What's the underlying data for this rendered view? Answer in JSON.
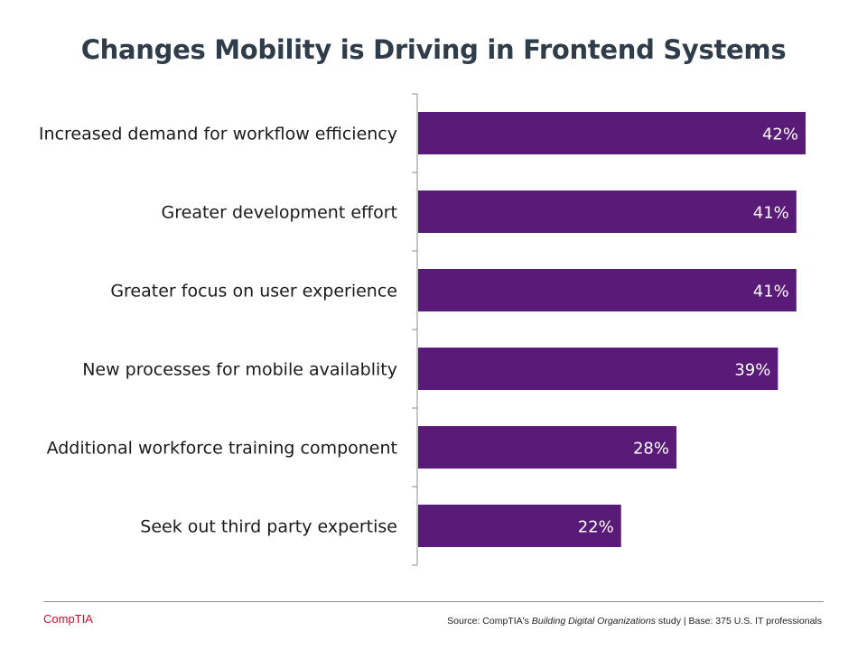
{
  "chart_data": {
    "type": "bar",
    "orientation": "horizontal",
    "title": "Changes Mobility is Driving in Frontend Systems",
    "categories": [
      "Increased demand for workflow efficiency",
      "Greater development effort",
      "Greater focus on user experience",
      "New processes for mobile availablity",
      "Additional workforce training component",
      "Seek out third party expertise"
    ],
    "values": [
      42,
      41,
      41,
      39,
      28,
      22
    ],
    "value_labels": [
      "42%",
      "41%",
      "41%",
      "39%",
      "28%",
      "22%"
    ],
    "xlim": [
      0,
      44
    ],
    "xlabel": "",
    "ylabel": "",
    "grid": false,
    "legend": "none",
    "bar_color": "#591a78"
  },
  "footer": {
    "logo_text": "CompTIA",
    "logo_mark": ".",
    "source_prefix": "Source: CompTIA's ",
    "source_study": "Building Digital Organizations",
    "source_suffix": " study | Base: 375 U.S. IT professionals"
  },
  "colors": {
    "title": "#2f3d4a",
    "accent": "#c8102e"
  }
}
